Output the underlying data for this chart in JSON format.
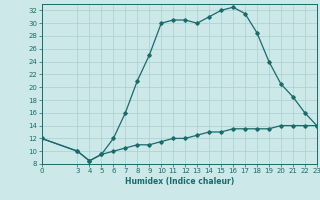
{
  "title": "",
  "xlabel": "Humidex (Indice chaleur)",
  "bg_color": "#cce8e8",
  "line_color": "#1a6b6b",
  "grid_color": "#aacfcf",
  "upper_x": [
    0,
    3,
    4,
    5,
    6,
    7,
    8,
    9,
    10,
    11,
    12,
    13,
    14,
    15,
    16,
    17,
    18,
    19,
    20,
    21,
    22,
    23
  ],
  "upper_y": [
    12,
    10,
    8.5,
    9.5,
    12,
    16,
    21,
    25,
    30,
    30.5,
    30.5,
    30,
    31,
    32,
    32.5,
    31.5,
    28.5,
    24,
    20.5,
    18.5,
    16,
    14
  ],
  "lower_x": [
    0,
    3,
    4,
    5,
    6,
    7,
    8,
    9,
    10,
    11,
    12,
    13,
    14,
    15,
    16,
    17,
    18,
    19,
    20,
    21,
    22,
    23
  ],
  "lower_y": [
    12,
    10,
    8.5,
    9.5,
    10,
    10.5,
    11,
    11,
    11.5,
    12,
    12,
    12.5,
    13,
    13,
    13.5,
    13.5,
    13.5,
    13.5,
    14,
    14,
    14,
    14
  ],
  "xlim": [
    0,
    23
  ],
  "ylim": [
    8,
    33
  ],
  "yticks": [
    8,
    10,
    12,
    14,
    16,
    18,
    20,
    22,
    24,
    26,
    28,
    30,
    32
  ],
  "xticks": [
    0,
    3,
    4,
    5,
    6,
    7,
    8,
    9,
    10,
    11,
    12,
    13,
    14,
    15,
    16,
    17,
    18,
    19,
    20,
    21,
    22,
    23
  ]
}
